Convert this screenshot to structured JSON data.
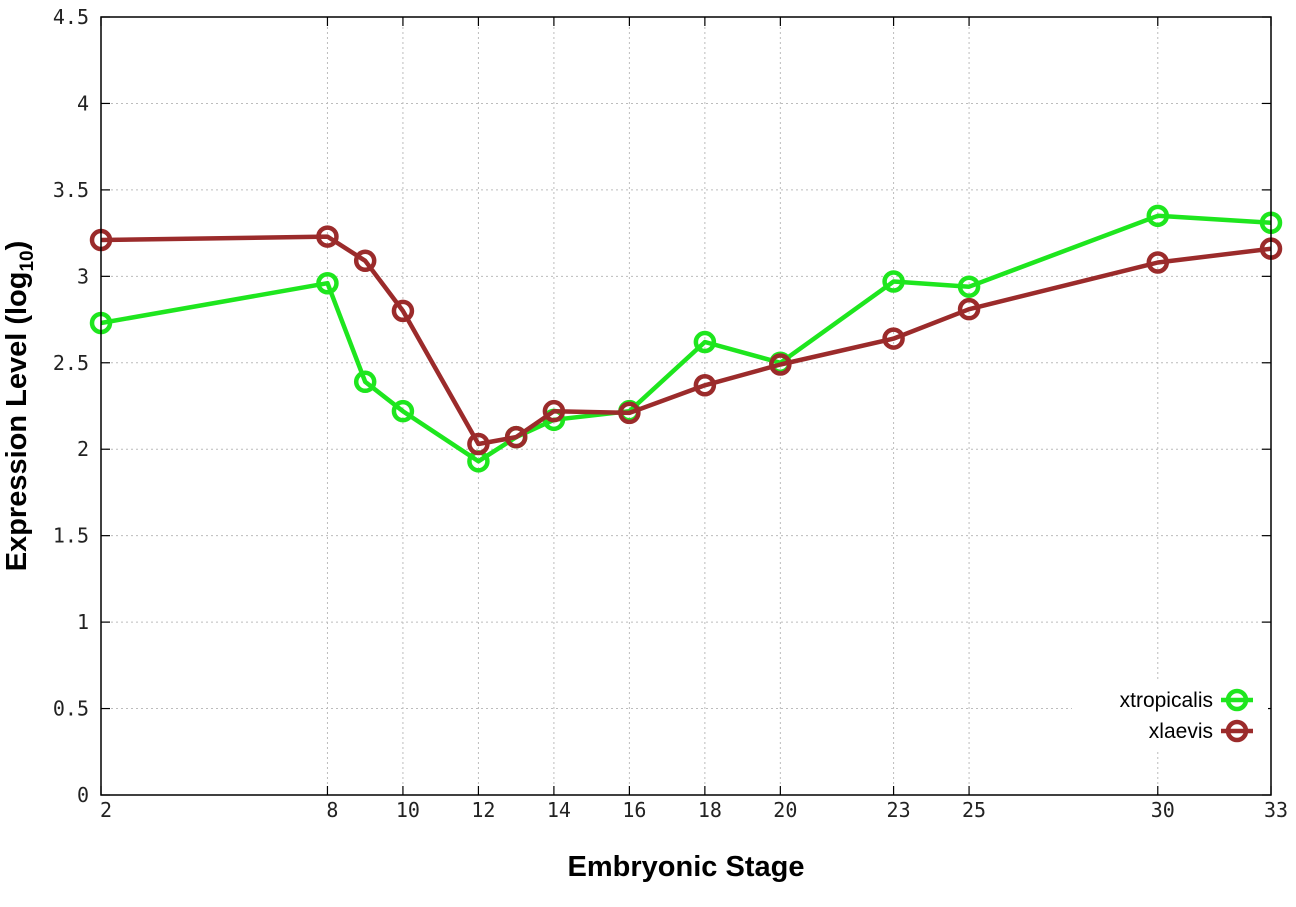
{
  "chart_data": {
    "type": "line",
    "title": "",
    "xlabel": "Embryonic Stage",
    "ylabel": {
      "main": "Expression Level (log",
      "sub": "10",
      "close": ")"
    },
    "ylim": [
      0,
      4.5
    ],
    "x_ticks": [
      "2",
      "8",
      "10",
      "12",
      "14",
      "16",
      "18",
      "20",
      "23",
      "25",
      "30",
      "33"
    ],
    "y_ticks": [
      "0",
      "0.5",
      "1",
      "1.5",
      "2",
      "2.5",
      "3",
      "3.5",
      "4",
      "4.5"
    ],
    "grid": true,
    "legend_position": "bottom-right",
    "series": [
      {
        "name": "xtropicalis",
        "color": "#1ee61e",
        "points": [
          [
            2,
            2.73
          ],
          [
            8,
            2.96
          ],
          [
            9,
            2.39
          ],
          [
            10,
            2.22
          ],
          [
            12,
            1.93
          ],
          [
            13,
            2.07
          ],
          [
            14,
            2.17
          ],
          [
            16,
            2.22
          ],
          [
            18,
            2.62
          ],
          [
            20,
            2.5
          ],
          [
            23,
            2.97
          ],
          [
            25,
            2.94
          ],
          [
            30,
            3.35
          ],
          [
            33,
            3.31
          ]
        ]
      },
      {
        "name": "xlaevis",
        "color": "#9b2b2b",
        "points": [
          [
            2,
            3.21
          ],
          [
            8,
            3.23
          ],
          [
            9,
            3.09
          ],
          [
            10,
            2.8
          ],
          [
            12,
            2.03
          ],
          [
            13,
            2.07
          ],
          [
            14,
            2.22
          ],
          [
            16,
            2.21
          ],
          [
            18,
            2.37
          ],
          [
            20,
            2.49
          ],
          [
            23,
            2.64
          ],
          [
            25,
            2.81
          ],
          [
            30,
            3.08
          ],
          [
            33,
            3.16
          ]
        ]
      }
    ]
  }
}
